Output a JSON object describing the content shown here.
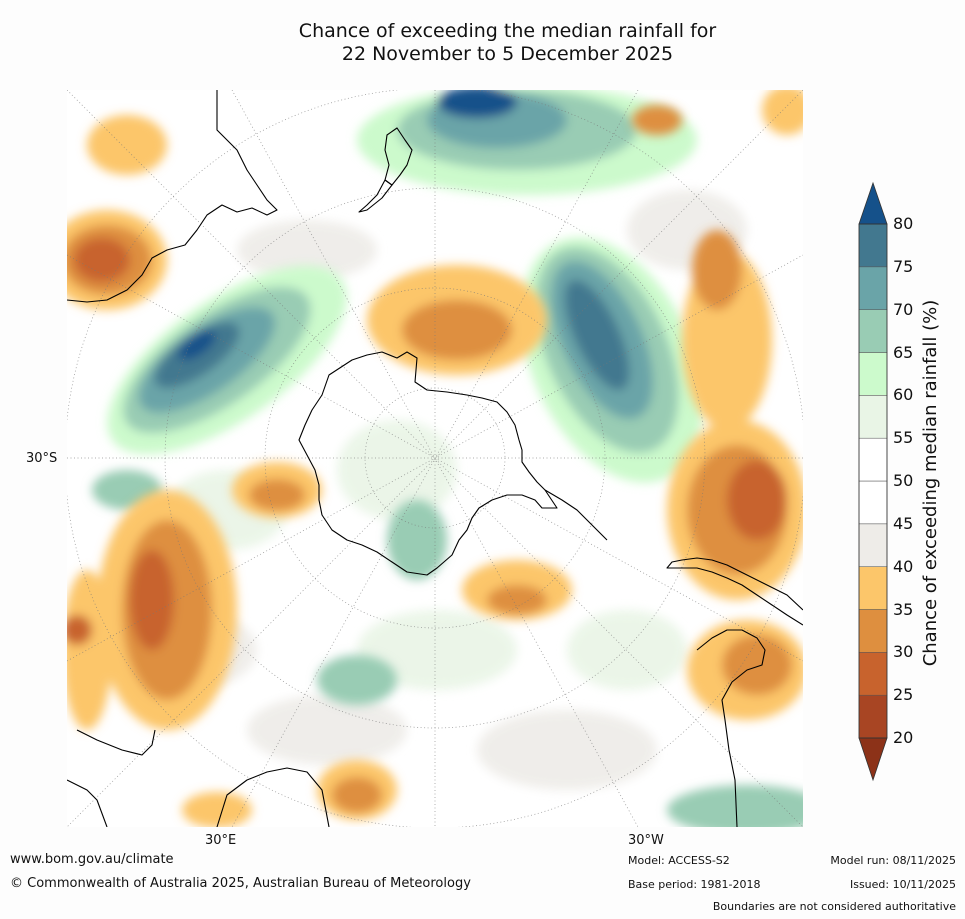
{
  "title": {
    "line1": "Chance of exceeding the median rainfall for",
    "line2": "22 November to 5 December 2025"
  },
  "map": {
    "projection": "south-polar-stereographic",
    "lat_label": "30°S",
    "lon_labels": {
      "east": "30°E",
      "west": "30°W"
    }
  },
  "colorbar": {
    "label": "Chance of exceeding median rainfall (%)",
    "ticks": [
      "20",
      "25",
      "30",
      "35",
      "40",
      "45",
      "50",
      "55",
      "60",
      "65",
      "70",
      "75",
      "80"
    ],
    "colors": [
      "#a84523",
      "#c8632d",
      "#de8f3f",
      "#fcc66a",
      "#eeece8",
      "#ffffff",
      "#ffffff",
      "#e9f5e6",
      "#ccfacc",
      "#99ccb4",
      "#6aa4a8",
      "#42788f"
    ],
    "under_color": "#8c3218",
    "over_color": "#15518a"
  },
  "footer": {
    "website": "www.bom.gov.au/climate",
    "copyright": "© Commonwealth of Australia 2025, Australian Bureau of Meteorology",
    "model": "Model: ACCESS-S2",
    "base_period": "Base period: 1981-2018",
    "model_run": "Model run: 08/11/2025",
    "issued": "Issued: 10/11/2025",
    "disclaimer": "Boundaries are not considered authoritative"
  }
}
